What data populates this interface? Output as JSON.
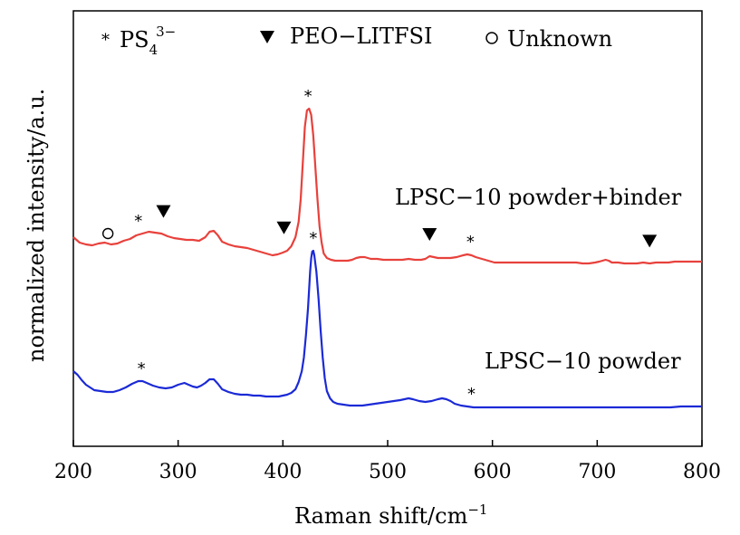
{
  "chart_data": {
    "type": "line",
    "xlabel": "Raman shift/cm",
    "xlabel_sup": "−1",
    "ylabel": "normalized intensity/a.u.",
    "xlim": [
      200,
      800
    ],
    "x_ticks": [
      "200",
      "300",
      "400",
      "500",
      "600",
      "700",
      "800"
    ],
    "y_ticks_visible": false,
    "legend": {
      "placement": "top",
      "entries": [
        {
          "symbol": "asterisk",
          "text": "PS",
          "sub": "4",
          "sup": "3−"
        },
        {
          "symbol": "triangle-down",
          "text": "PEO−LITFSI"
        },
        {
          "symbol": "circle",
          "text": "Unknown"
        }
      ]
    },
    "series": [
      {
        "name": "LPSC−10 powder+binder",
        "color": "#e8413c",
        "points": [
          [
            200,
            262
          ],
          [
            206,
            268
          ],
          [
            212,
            270
          ],
          [
            218,
            271
          ],
          [
            224,
            269
          ],
          [
            230,
            268
          ],
          [
            236,
            270
          ],
          [
            242,
            269
          ],
          [
            248,
            266
          ],
          [
            254,
            264
          ],
          [
            260,
            260
          ],
          [
            266,
            258
          ],
          [
            272,
            256
          ],
          [
            278,
            257
          ],
          [
            284,
            258
          ],
          [
            290,
            261
          ],
          [
            296,
            263
          ],
          [
            302,
            264
          ],
          [
            308,
            265
          ],
          [
            314,
            265
          ],
          [
            320,
            266
          ],
          [
            326,
            262
          ],
          [
            330,
            256
          ],
          [
            334,
            255
          ],
          [
            338,
            260
          ],
          [
            342,
            267
          ],
          [
            348,
            270
          ],
          [
            354,
            272
          ],
          [
            360,
            273
          ],
          [
            366,
            274
          ],
          [
            372,
            276
          ],
          [
            378,
            278
          ],
          [
            384,
            280
          ],
          [
            390,
            282
          ],
          [
            395,
            281
          ],
          [
            400,
            279
          ],
          [
            404,
            277
          ],
          [
            408,
            272
          ],
          [
            412,
            262
          ],
          [
            415,
            245
          ],
          [
            417,
            220
          ],
          [
            419,
            180
          ],
          [
            421,
            140
          ],
          [
            423,
            122
          ],
          [
            425,
            120
          ],
          [
            427,
            127
          ],
          [
            429,
            150
          ],
          [
            431,
            185
          ],
          [
            433,
            220
          ],
          [
            435,
            250
          ],
          [
            437,
            268
          ],
          [
            439,
            280
          ],
          [
            442,
            285
          ],
          [
            446,
            287
          ],
          [
            450,
            288
          ],
          [
            456,
            288
          ],
          [
            462,
            288
          ],
          [
            466,
            287
          ],
          [
            470,
            285
          ],
          [
            474,
            284
          ],
          [
            478,
            284
          ],
          [
            484,
            286
          ],
          [
            490,
            286
          ],
          [
            496,
            287
          ],
          [
            502,
            287
          ],
          [
            508,
            287
          ],
          [
            514,
            287
          ],
          [
            520,
            286
          ],
          [
            526,
            287
          ],
          [
            532,
            287
          ],
          [
            536,
            286
          ],
          [
            540,
            283
          ],
          [
            544,
            284
          ],
          [
            548,
            285
          ],
          [
            554,
            285
          ],
          [
            560,
            285
          ],
          [
            566,
            284
          ],
          [
            572,
            282
          ],
          [
            576,
            281
          ],
          [
            580,
            282
          ],
          [
            584,
            284
          ],
          [
            590,
            286
          ],
          [
            596,
            288
          ],
          [
            602,
            290
          ],
          [
            608,
            290
          ],
          [
            614,
            290
          ],
          [
            620,
            290
          ],
          [
            626,
            290
          ],
          [
            632,
            290
          ],
          [
            638,
            290
          ],
          [
            644,
            290
          ],
          [
            650,
            290
          ],
          [
            656,
            290
          ],
          [
            662,
            290
          ],
          [
            668,
            290
          ],
          [
            674,
            290
          ],
          [
            680,
            290
          ],
          [
            686,
            291
          ],
          [
            692,
            291
          ],
          [
            698,
            290
          ],
          [
            702,
            289
          ],
          [
            705,
            288
          ],
          [
            708,
            287
          ],
          [
            711,
            288
          ],
          [
            714,
            290
          ],
          [
            720,
            290
          ],
          [
            726,
            291
          ],
          [
            732,
            291
          ],
          [
            738,
            291
          ],
          [
            744,
            290
          ],
          [
            750,
            291
          ],
          [
            756,
            290
          ],
          [
            762,
            290
          ],
          [
            768,
            290
          ],
          [
            774,
            289
          ],
          [
            780,
            289
          ],
          [
            786,
            289
          ],
          [
            792,
            289
          ],
          [
            800,
            289
          ]
        ]
      },
      {
        "name": "LPSC−10 powder",
        "color": "#1b2ad6",
        "points": [
          [
            200,
            410
          ],
          [
            204,
            414
          ],
          [
            208,
            420
          ],
          [
            212,
            425
          ],
          [
            216,
            428
          ],
          [
            220,
            431
          ],
          [
            226,
            432
          ],
          [
            232,
            433
          ],
          [
            238,
            433
          ],
          [
            244,
            431
          ],
          [
            250,
            428
          ],
          [
            256,
            424
          ],
          [
            262,
            421
          ],
          [
            266,
            421
          ],
          [
            270,
            423
          ],
          [
            276,
            426
          ],
          [
            282,
            428
          ],
          [
            288,
            429
          ],
          [
            294,
            428
          ],
          [
            300,
            425
          ],
          [
            306,
            423
          ],
          [
            310,
            425
          ],
          [
            314,
            427
          ],
          [
            318,
            428
          ],
          [
            322,
            426
          ],
          [
            326,
            423
          ],
          [
            330,
            419
          ],
          [
            334,
            419
          ],
          [
            338,
            424
          ],
          [
            342,
            430
          ],
          [
            348,
            433
          ],
          [
            354,
            435
          ],
          [
            360,
            436
          ],
          [
            366,
            436
          ],
          [
            372,
            437
          ],
          [
            378,
            437
          ],
          [
            384,
            438
          ],
          [
            390,
            438
          ],
          [
            396,
            438
          ],
          [
            400,
            437
          ],
          [
            404,
            436
          ],
          [
            408,
            434
          ],
          [
            412,
            430
          ],
          [
            415,
            422
          ],
          [
            418,
            410
          ],
          [
            420,
            395
          ],
          [
            422,
            370
          ],
          [
            424,
            340
          ],
          [
            426,
            300
          ],
          [
            427,
            285
          ],
          [
            428,
            278
          ],
          [
            429,
            277
          ],
          [
            430,
            282
          ],
          [
            432,
            300
          ],
          [
            434,
            330
          ],
          [
            436,
            365
          ],
          [
            438,
            395
          ],
          [
            440,
            418
          ],
          [
            442,
            432
          ],
          [
            445,
            440
          ],
          [
            448,
            444
          ],
          [
            452,
            446
          ],
          [
            458,
            447
          ],
          [
            464,
            448
          ],
          [
            470,
            448
          ],
          [
            476,
            448
          ],
          [
            482,
            447
          ],
          [
            488,
            446
          ],
          [
            494,
            445
          ],
          [
            500,
            444
          ],
          [
            506,
            443
          ],
          [
            512,
            442
          ],
          [
            516,
            441
          ],
          [
            520,
            440
          ],
          [
            524,
            441
          ],
          [
            530,
            443
          ],
          [
            536,
            444
          ],
          [
            542,
            443
          ],
          [
            548,
            441
          ],
          [
            552,
            440
          ],
          [
            556,
            441
          ],
          [
            560,
            443
          ],
          [
            564,
            446
          ],
          [
            570,
            448
          ],
          [
            576,
            449
          ],
          [
            582,
            450
          ],
          [
            590,
            450
          ],
          [
            598,
            450
          ],
          [
            606,
            450
          ],
          [
            614,
            450
          ],
          [
            622,
            450
          ],
          [
            630,
            450
          ],
          [
            640,
            450
          ],
          [
            650,
            450
          ],
          [
            660,
            450
          ],
          [
            670,
            450
          ],
          [
            680,
            450
          ],
          [
            690,
            450
          ],
          [
            700,
            450
          ],
          [
            710,
            450
          ],
          [
            720,
            450
          ],
          [
            730,
            450
          ],
          [
            740,
            450
          ],
          [
            750,
            450
          ],
          [
            760,
            450
          ],
          [
            770,
            450
          ],
          [
            780,
            449
          ],
          [
            790,
            449
          ],
          [
            800,
            449
          ]
        ]
      }
    ],
    "markers": [
      {
        "symbol": "circle",
        "x": 233,
        "series": 0
      },
      {
        "symbol": "asterisk",
        "x": 262,
        "series": 0
      },
      {
        "symbol": "triangle-down",
        "x": 286,
        "series": 0
      },
      {
        "symbol": "triangle-down",
        "x": 401,
        "series": 0
      },
      {
        "symbol": "asterisk",
        "x": 424,
        "series": 0
      },
      {
        "symbol": "triangle-down",
        "x": 540,
        "series": 0
      },
      {
        "symbol": "asterisk",
        "x": 579,
        "series": 0
      },
      {
        "symbol": "triangle-down",
        "x": 750,
        "series": 0
      },
      {
        "symbol": "asterisk",
        "x": 265,
        "series": 1
      },
      {
        "symbol": "asterisk",
        "x": 429,
        "series": 1
      },
      {
        "symbol": "asterisk",
        "x": 580,
        "series": 1
      }
    ]
  }
}
